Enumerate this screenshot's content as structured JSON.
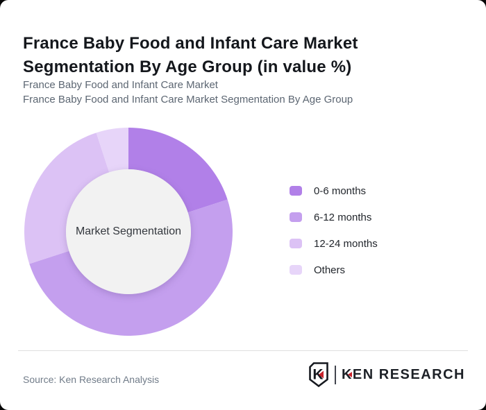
{
  "header": {
    "title": "France Baby Food and Infant Care Market Segmentation By Age Group (in value %)",
    "subtitle_line1": "France Baby Food and Infant Care Market",
    "subtitle_line2": "France Baby Food and Infant Care Market Segmentation By Age Group"
  },
  "chart_data": {
    "type": "pie",
    "subtype": "donut",
    "title": "France Baby Food and Infant Care Market Segmentation By Age Group (in value %)",
    "center_label": "Market Segmentation",
    "categories": [
      "0-6 months",
      "6-12 months",
      "12-24 months",
      "Others"
    ],
    "values": [
      20,
      50,
      25,
      5
    ],
    "values_note": "percent of market value, estimated from slice angles (no data labels shown)",
    "colors": [
      "#b180e8",
      "#c49fee",
      "#dcc2f5",
      "#e7d5f9"
    ],
    "start_angle_deg": 0,
    "direction": "clockwise",
    "inner_radius_ratio": 0.6,
    "center_fill": "#f2f2f2",
    "legend_position": "right"
  },
  "legend": {
    "items": [
      {
        "label": "0-6 months",
        "color": "#b180e8"
      },
      {
        "label": "6-12 months",
        "color": "#c49fee"
      },
      {
        "label": "12-24 months",
        "color": "#dcc2f5"
      },
      {
        "label": "Others",
        "color": "#e7d5f9"
      }
    ]
  },
  "footer": {
    "source": "Source: Ken Research Analysis",
    "logo": {
      "shield_letter": "K",
      "wordmark_first": "K",
      "wordmark_rest": "EN RESEARCH",
      "accent_color": "#c8232c"
    }
  }
}
